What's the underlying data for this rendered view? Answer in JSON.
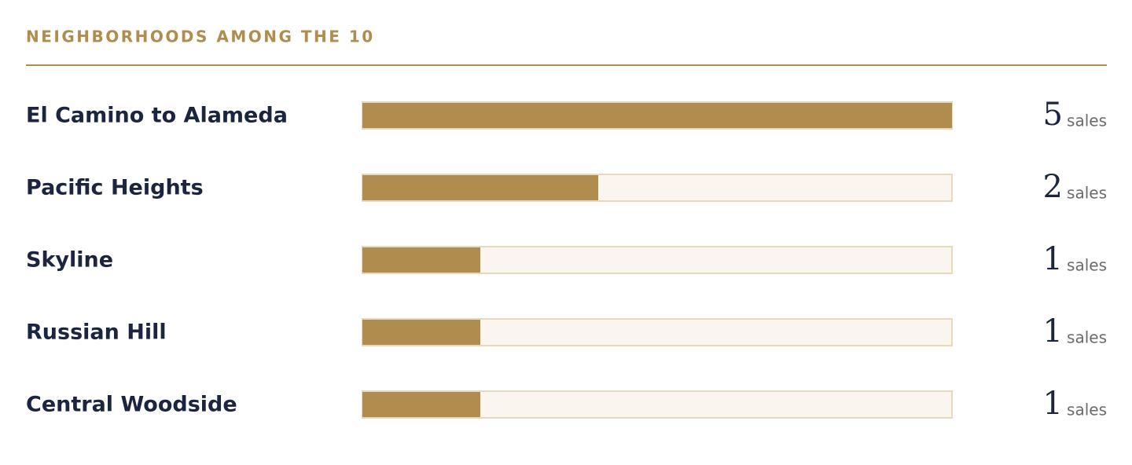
{
  "chart_data": {
    "type": "bar",
    "orientation": "horizontal",
    "title": "NEIGHBORHOODS AMONG THE 10",
    "categories": [
      "El Camino to Alameda",
      "Pacific Heights",
      "Skyline",
      "Russian Hill",
      "Central Woodside"
    ],
    "values": [
      5,
      2,
      1,
      1,
      1
    ],
    "unit": "sales",
    "xlim": [
      0,
      5
    ],
    "color": "#b08c4f",
    "track_color": "#faf6ef",
    "track_border": "#e8d9bc"
  }
}
